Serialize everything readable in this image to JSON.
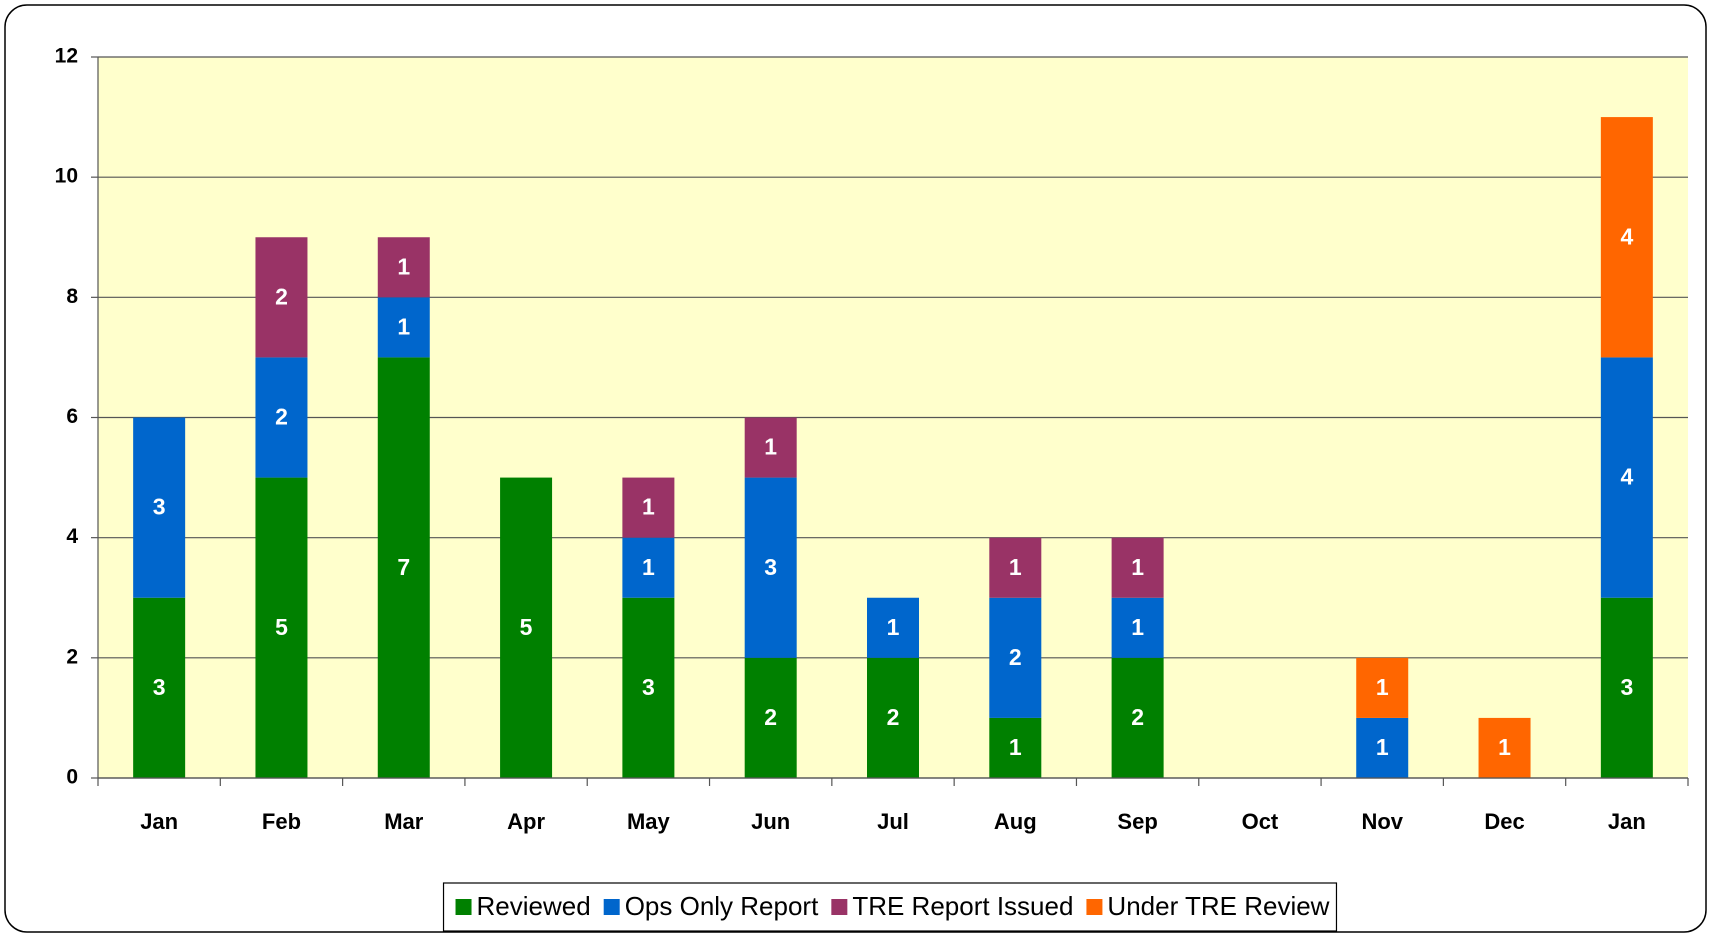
{
  "chart_data": {
    "type": "bar",
    "stacked": true,
    "categories": [
      "Jan",
      "Feb",
      "Mar",
      "Apr",
      "May",
      "Jun",
      "Jul",
      "Aug",
      "Sep",
      "Oct",
      "Nov",
      "Dec",
      "Jan"
    ],
    "series": [
      {
        "name": "Reviewed",
        "color": "#008000",
        "values": [
          3,
          5,
          7,
          5,
          3,
          2,
          2,
          1,
          2,
          0,
          0,
          0,
          3
        ]
      },
      {
        "name": "Ops Only Report",
        "color": "#0066cc",
        "values": [
          3,
          2,
          1,
          0,
          1,
          3,
          1,
          2,
          1,
          0,
          1,
          0,
          4
        ]
      },
      {
        "name": "TRE Report Issued",
        "color": "#993366",
        "values": [
          0,
          2,
          1,
          0,
          1,
          1,
          0,
          1,
          1,
          0,
          0,
          0,
          0
        ]
      },
      {
        "name": "Under TRE Review",
        "color": "#ff6600",
        "values": [
          0,
          0,
          0,
          0,
          0,
          0,
          0,
          0,
          0,
          0,
          1,
          1,
          4
        ]
      }
    ],
    "ylim": [
      0,
      12
    ],
    "yticks": [
      0,
      2,
      4,
      6,
      8,
      10,
      12
    ],
    "grid": true,
    "legend": "bottom"
  }
}
